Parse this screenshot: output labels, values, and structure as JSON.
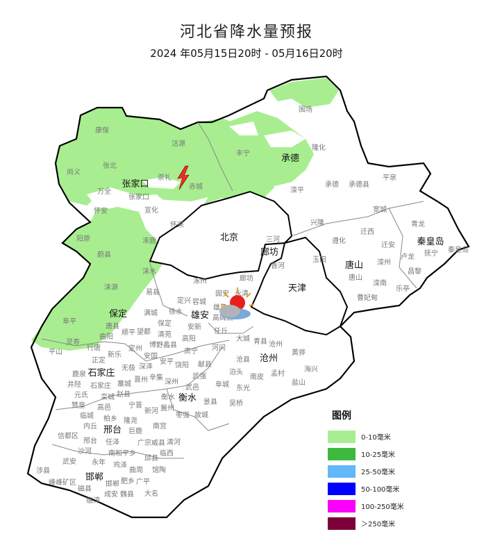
{
  "header": {
    "title": "河北省降水量预报",
    "subtitle": "2024 年05月15日20时 - 05月16日20时"
  },
  "legend": {
    "title": "图例",
    "items": [
      {
        "label": "0-10毫米",
        "color": "#a8ee90"
      },
      {
        "label": "10-25毫米",
        "color": "#3dba3d"
      },
      {
        "label": "25-50毫米",
        "color": "#62b8f8"
      },
      {
        "label": "50-100毫米",
        "color": "#0000fe"
      },
      {
        "label": "100-250毫米",
        "color": "#fa00fa"
      },
      {
        "label": "＞250毫米",
        "color": "#7e0038"
      }
    ]
  },
  "map": {
    "rain_color": "#a8ee90",
    "border_color": "#000000",
    "weather_icons": [
      "thunderstorm-icon",
      "sun-behind-cloud-icon"
    ],
    "cities": [
      "张家口",
      "承德",
      "北京",
      "廊坊",
      "天津",
      "唐山",
      "秦皇岛",
      "保定",
      "雄安",
      "沧州",
      "石家庄",
      "衡水",
      "邢台",
      "邯郸"
    ],
    "counties": [
      "康保",
      "沽源",
      "尚义",
      "张北",
      "崇礼",
      "赤城",
      "万全",
      "张家口",
      "宣化",
      "怀安",
      "怀来",
      "阳原",
      "涿鹿",
      "蔚县",
      "涞水",
      "丰宁",
      "围场",
      "隆化",
      "滦平",
      "承德",
      "承德县",
      "平泉",
      "宽城",
      "兴隆",
      "迁西",
      "遵化",
      "迁安",
      "青龙",
      "抚宁",
      "秦皇岛",
      "卢龙",
      "玉田",
      "唐山",
      "滦州",
      "昌黎",
      "滦南",
      "乐亭",
      "曹妃甸",
      "三河",
      "香河",
      "涿州",
      "廊坊",
      "易县",
      "固安",
      "永清",
      "定兴",
      "高碑店",
      "满城",
      "徐水",
      "容城",
      "雄县",
      "保定",
      "安新",
      "清苑",
      "望都",
      "顺平",
      "唐县",
      "曲阳",
      "阜平",
      "涞源",
      "灵寿",
      "行唐",
      "平山",
      "高阳",
      "任丘",
      "大城",
      "青县",
      "河间",
      "定州",
      "博野蠡县",
      "安国",
      "肃宁",
      "沧县",
      "沧州",
      "黄骅",
      "献县",
      "安平",
      "饶阳",
      "深泽",
      "无极",
      "新乐",
      "正定",
      "鹿泉",
      "石家庄",
      "藁城",
      "晋州",
      "辛集",
      "井陉",
      "栾城",
      "元氏",
      "赵县",
      "赞皇",
      "高邑",
      "柏乡",
      "宁晋",
      "新河",
      "冀州",
      "临城",
      "内丘",
      "隆尧",
      "巨鹿",
      "南宫",
      "信都区",
      "邢台",
      "任泽",
      "南和平乡",
      "广宗威县",
      "清河",
      "沙河",
      "鸡泽",
      "永年",
      "邱县",
      "曲周",
      "临西",
      "武安",
      "邯郸",
      "馆陶",
      "涉县",
      "峰峰矿区",
      "肥乡",
      "广平",
      "磁县",
      "成安",
      "大名",
      "临漳",
      "魏县",
      "深州",
      "武强",
      "泊头",
      "南皮",
      "孟村",
      "海兴",
      "盐山",
      "东光",
      "阜城",
      "武邑",
      "衡水",
      "景县",
      "吴桥",
      "枣强",
      "故城"
    ]
  }
}
